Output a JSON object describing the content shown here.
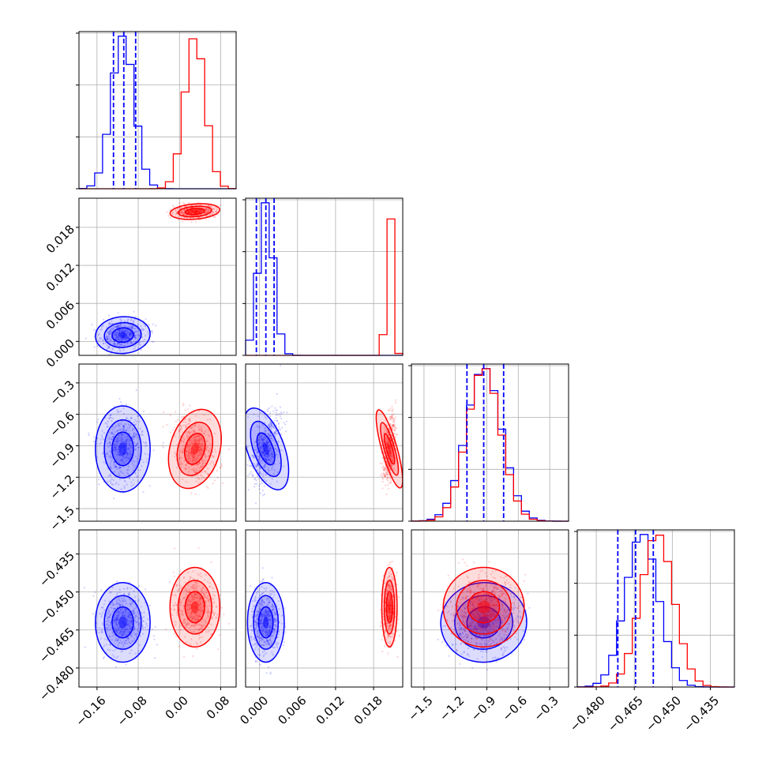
{
  "chart_data": {
    "type": "corner",
    "parameters": 4,
    "series": [
      {
        "color": "#0000ff",
        "means": [
          -0.11,
          0.001,
          -0.93,
          -0.462
        ],
        "sds": [
          0.022,
          0.0012,
          0.17,
          0.0065
        ],
        "quantiles_shown": true
      },
      {
        "color": "#ff0000",
        "means": [
          0.03,
          0.0205,
          -0.93,
          -0.456
        ],
        "sds": [
          0.02,
          0.0005,
          0.16,
          0.0065
        ],
        "quantiles_shown": false
      }
    ],
    "quantiles": [
      [
        -0.128,
        -0.108,
        -0.085
      ],
      [
        -0.0005,
        0.001,
        0.0023
      ],
      [
        -1.09,
        -0.93,
        -0.74
      ],
      [
        -0.4715,
        -0.4645,
        -0.4575
      ]
    ],
    "axes": [
      {
        "range": [
          -0.195,
          0.11
        ],
        "ticks": [
          "−0.16",
          "−0.08",
          "0.00",
          "0.08"
        ],
        "tick_values": [
          -0.16,
          -0.08,
          0.0,
          0.08
        ]
      },
      {
        "range": [
          -0.0022,
          0.0226
        ],
        "ticks": [
          "0.000",
          "0.006",
          "0.012",
          "0.018"
        ],
        "tick_values": [
          0.0,
          0.006,
          0.012,
          0.018
        ]
      },
      {
        "range": [
          -1.62,
          -0.12
        ],
        "ticks": [
          "−1.5",
          "−1.2",
          "−0.9",
          "−0.6",
          "−0.3"
        ],
        "tick_values": [
          -1.5,
          -1.2,
          -0.9,
          -0.6,
          -0.3
        ]
      },
      {
        "range": [
          -0.4875,
          -0.4255
        ],
        "ticks": [
          "−0.480",
          "−0.465",
          "−0.450",
          "−0.435"
        ],
        "tick_values": [
          -0.48,
          -0.465,
          -0.45,
          -0.435
        ]
      }
    ],
    "histogram_bins": 20,
    "grid": true,
    "xlabel": "",
    "ylabel": "",
    "title": ""
  }
}
